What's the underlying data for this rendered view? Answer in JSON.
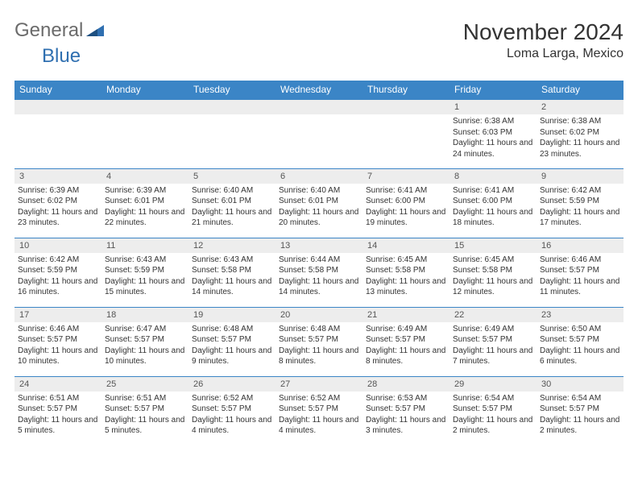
{
  "logo": {
    "word1": "General",
    "word2": "Blue"
  },
  "header": {
    "month_title": "November 2024",
    "location": "Loma Larga, Mexico"
  },
  "colors": {
    "header_bg": "#3b85c6",
    "header_text": "#ffffff",
    "daynum_bg": "#ededed",
    "border": "#3b85c6",
    "logo_gray": "#6b6b6b",
    "logo_blue": "#2f6fb0"
  },
  "day_labels": [
    "Sunday",
    "Monday",
    "Tuesday",
    "Wednesday",
    "Thursday",
    "Friday",
    "Saturday"
  ],
  "weeks": [
    [
      null,
      null,
      null,
      null,
      null,
      {
        "n": "1",
        "sunrise": "Sunrise: 6:38 AM",
        "sunset": "Sunset: 6:03 PM",
        "daylight": "Daylight: 11 hours and 24 minutes."
      },
      {
        "n": "2",
        "sunrise": "Sunrise: 6:38 AM",
        "sunset": "Sunset: 6:02 PM",
        "daylight": "Daylight: 11 hours and 23 minutes."
      }
    ],
    [
      {
        "n": "3",
        "sunrise": "Sunrise: 6:39 AM",
        "sunset": "Sunset: 6:02 PM",
        "daylight": "Daylight: 11 hours and 23 minutes."
      },
      {
        "n": "4",
        "sunrise": "Sunrise: 6:39 AM",
        "sunset": "Sunset: 6:01 PM",
        "daylight": "Daylight: 11 hours and 22 minutes."
      },
      {
        "n": "5",
        "sunrise": "Sunrise: 6:40 AM",
        "sunset": "Sunset: 6:01 PM",
        "daylight": "Daylight: 11 hours and 21 minutes."
      },
      {
        "n": "6",
        "sunrise": "Sunrise: 6:40 AM",
        "sunset": "Sunset: 6:01 PM",
        "daylight": "Daylight: 11 hours and 20 minutes."
      },
      {
        "n": "7",
        "sunrise": "Sunrise: 6:41 AM",
        "sunset": "Sunset: 6:00 PM",
        "daylight": "Daylight: 11 hours and 19 minutes."
      },
      {
        "n": "8",
        "sunrise": "Sunrise: 6:41 AM",
        "sunset": "Sunset: 6:00 PM",
        "daylight": "Daylight: 11 hours and 18 minutes."
      },
      {
        "n": "9",
        "sunrise": "Sunrise: 6:42 AM",
        "sunset": "Sunset: 5:59 PM",
        "daylight": "Daylight: 11 hours and 17 minutes."
      }
    ],
    [
      {
        "n": "10",
        "sunrise": "Sunrise: 6:42 AM",
        "sunset": "Sunset: 5:59 PM",
        "daylight": "Daylight: 11 hours and 16 minutes."
      },
      {
        "n": "11",
        "sunrise": "Sunrise: 6:43 AM",
        "sunset": "Sunset: 5:59 PM",
        "daylight": "Daylight: 11 hours and 15 minutes."
      },
      {
        "n": "12",
        "sunrise": "Sunrise: 6:43 AM",
        "sunset": "Sunset: 5:58 PM",
        "daylight": "Daylight: 11 hours and 14 minutes."
      },
      {
        "n": "13",
        "sunrise": "Sunrise: 6:44 AM",
        "sunset": "Sunset: 5:58 PM",
        "daylight": "Daylight: 11 hours and 14 minutes."
      },
      {
        "n": "14",
        "sunrise": "Sunrise: 6:45 AM",
        "sunset": "Sunset: 5:58 PM",
        "daylight": "Daylight: 11 hours and 13 minutes."
      },
      {
        "n": "15",
        "sunrise": "Sunrise: 6:45 AM",
        "sunset": "Sunset: 5:58 PM",
        "daylight": "Daylight: 11 hours and 12 minutes."
      },
      {
        "n": "16",
        "sunrise": "Sunrise: 6:46 AM",
        "sunset": "Sunset: 5:57 PM",
        "daylight": "Daylight: 11 hours and 11 minutes."
      }
    ],
    [
      {
        "n": "17",
        "sunrise": "Sunrise: 6:46 AM",
        "sunset": "Sunset: 5:57 PM",
        "daylight": "Daylight: 11 hours and 10 minutes."
      },
      {
        "n": "18",
        "sunrise": "Sunrise: 6:47 AM",
        "sunset": "Sunset: 5:57 PM",
        "daylight": "Daylight: 11 hours and 10 minutes."
      },
      {
        "n": "19",
        "sunrise": "Sunrise: 6:48 AM",
        "sunset": "Sunset: 5:57 PM",
        "daylight": "Daylight: 11 hours and 9 minutes."
      },
      {
        "n": "20",
        "sunrise": "Sunrise: 6:48 AM",
        "sunset": "Sunset: 5:57 PM",
        "daylight": "Daylight: 11 hours and 8 minutes."
      },
      {
        "n": "21",
        "sunrise": "Sunrise: 6:49 AM",
        "sunset": "Sunset: 5:57 PM",
        "daylight": "Daylight: 11 hours and 8 minutes."
      },
      {
        "n": "22",
        "sunrise": "Sunrise: 6:49 AM",
        "sunset": "Sunset: 5:57 PM",
        "daylight": "Daylight: 11 hours and 7 minutes."
      },
      {
        "n": "23",
        "sunrise": "Sunrise: 6:50 AM",
        "sunset": "Sunset: 5:57 PM",
        "daylight": "Daylight: 11 hours and 6 minutes."
      }
    ],
    [
      {
        "n": "24",
        "sunrise": "Sunrise: 6:51 AM",
        "sunset": "Sunset: 5:57 PM",
        "daylight": "Daylight: 11 hours and 5 minutes."
      },
      {
        "n": "25",
        "sunrise": "Sunrise: 6:51 AM",
        "sunset": "Sunset: 5:57 PM",
        "daylight": "Daylight: 11 hours and 5 minutes."
      },
      {
        "n": "26",
        "sunrise": "Sunrise: 6:52 AM",
        "sunset": "Sunset: 5:57 PM",
        "daylight": "Daylight: 11 hours and 4 minutes."
      },
      {
        "n": "27",
        "sunrise": "Sunrise: 6:52 AM",
        "sunset": "Sunset: 5:57 PM",
        "daylight": "Daylight: 11 hours and 4 minutes."
      },
      {
        "n": "28",
        "sunrise": "Sunrise: 6:53 AM",
        "sunset": "Sunset: 5:57 PM",
        "daylight": "Daylight: 11 hours and 3 minutes."
      },
      {
        "n": "29",
        "sunrise": "Sunrise: 6:54 AM",
        "sunset": "Sunset: 5:57 PM",
        "daylight": "Daylight: 11 hours and 2 minutes."
      },
      {
        "n": "30",
        "sunrise": "Sunrise: 6:54 AM",
        "sunset": "Sunset: 5:57 PM",
        "daylight": "Daylight: 11 hours and 2 minutes."
      }
    ]
  ]
}
